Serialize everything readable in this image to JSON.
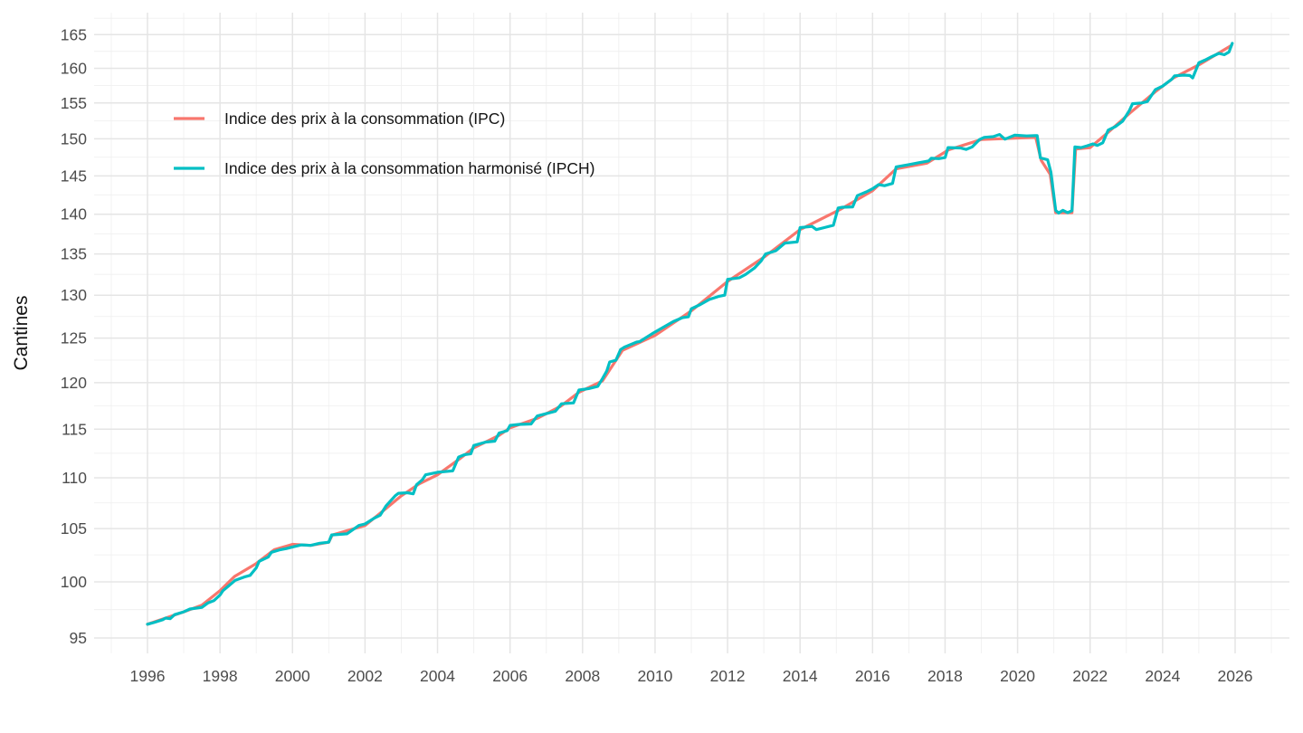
{
  "chart_data": {
    "type": "line",
    "title": "",
    "xlabel": "",
    "ylabel": "Cantines",
    "y_scale": "log",
    "grid": true,
    "legend_position": "inside-top-left",
    "background_color": "#ffffff",
    "grid_major_color": "#e5e5e5",
    "grid_minor_color": "#f0f0f0",
    "axis_text_color": "#4d4d4d",
    "title_text_color": "#141414",
    "x_ticks": [
      1996,
      1998,
      2000,
      2002,
      2004,
      2006,
      2008,
      2010,
      2012,
      2014,
      2016,
      2018,
      2020,
      2022,
      2024,
      2026
    ],
    "x_minor_ticks": [
      1995,
      1997,
      1999,
      2001,
      2003,
      2005,
      2007,
      2009,
      2011,
      2013,
      2015,
      2017,
      2019,
      2021,
      2023,
      2025,
      2027
    ],
    "y_ticks": [
      95,
      100,
      105,
      110,
      115,
      120,
      125,
      130,
      135,
      140,
      145,
      150,
      155,
      160,
      165
    ],
    "y_minor_ticks": [
      97.5,
      102.5,
      107.5,
      112.5,
      117.5,
      122.5,
      127.5,
      132.5,
      137.5,
      142.5,
      147.5,
      152.5,
      157.5,
      162.5,
      167.5
    ],
    "x_range": [
      1994.5,
      2027.4
    ],
    "y_range": [
      93.6,
      168.5
    ],
    "series": [
      {
        "name": "IPC",
        "label": "Indice des prix à la consommation (IPC)",
        "color": "#F8766D",
        "points": [
          [
            1996.0,
            96.2
          ],
          [
            1996.5,
            96.75
          ],
          [
            1997.0,
            97.3
          ],
          [
            1997.5,
            97.9
          ],
          [
            1998.0,
            99.2
          ],
          [
            1998.4,
            100.5
          ],
          [
            1999.0,
            101.7
          ],
          [
            1999.5,
            103.0
          ],
          [
            2000.0,
            103.5
          ],
          [
            2000.5,
            103.4
          ],
          [
            2001.0,
            103.7
          ],
          [
            2001.1,
            104.4
          ],
          [
            2002.0,
            105.3
          ],
          [
            2002.6,
            107.0
          ],
          [
            2003.0,
            108.2
          ],
          [
            2003.5,
            109.4
          ],
          [
            2004.0,
            110.3
          ],
          [
            2004.6,
            111.9
          ],
          [
            2005.0,
            113.05
          ],
          [
            2005.7,
            114.35
          ],
          [
            2006.0,
            115.15
          ],
          [
            2006.75,
            116.15
          ],
          [
            2007.4,
            117.45
          ],
          [
            2007.9,
            118.95
          ],
          [
            2008.55,
            120.2
          ],
          [
            2009.1,
            123.6
          ],
          [
            2010.0,
            125.3
          ],
          [
            2011.0,
            128.15
          ],
          [
            2012.0,
            131.65
          ],
          [
            2013.05,
            134.75
          ],
          [
            2014.0,
            138.05
          ],
          [
            2015.1,
            140.6
          ],
          [
            2016.0,
            143.05
          ],
          [
            2016.65,
            145.95
          ],
          [
            2017.5,
            146.7
          ],
          [
            2018.1,
            148.5
          ],
          [
            2019.0,
            149.9
          ],
          [
            2020.5,
            150.2
          ],
          [
            2020.65,
            147.1
          ],
          [
            2020.9,
            145.2
          ],
          [
            2021.05,
            140.2
          ],
          [
            2021.5,
            140.2
          ],
          [
            2021.6,
            148.6
          ],
          [
            2022.0,
            148.8
          ],
          [
            2022.5,
            150.9
          ],
          [
            2023.1,
            153.6
          ],
          [
            2023.8,
            156.6
          ],
          [
            2024.3,
            158.6
          ],
          [
            2025.0,
            160.5
          ],
          [
            2025.9,
            163.4
          ]
        ]
      },
      {
        "name": "IPCH",
        "label": "Indice des prix à la consommation harmonisé (IPCH)",
        "color": "#00BFC4",
        "points": [
          [
            1996.0,
            96.2
          ],
          [
            1996.17,
            96.35
          ],
          [
            1996.42,
            96.6
          ],
          [
            1996.5,
            96.75
          ],
          [
            1996.63,
            96.7
          ],
          [
            1996.75,
            97.05
          ],
          [
            1997.0,
            97.3
          ],
          [
            1997.17,
            97.55
          ],
          [
            1997.5,
            97.7
          ],
          [
            1997.67,
            98.1
          ],
          [
            1997.83,
            98.3
          ],
          [
            1998.0,
            98.8
          ],
          [
            1998.08,
            99.2
          ],
          [
            1998.33,
            99.9
          ],
          [
            1998.42,
            100.15
          ],
          [
            1998.67,
            100.45
          ],
          [
            1998.83,
            100.6
          ],
          [
            1999.0,
            101.3
          ],
          [
            1999.08,
            101.9
          ],
          [
            1999.33,
            102.3
          ],
          [
            1999.42,
            102.75
          ],
          [
            1999.67,
            103.0
          ],
          [
            1999.83,
            103.1
          ],
          [
            2000.0,
            103.25
          ],
          [
            2000.25,
            103.45
          ],
          [
            2000.5,
            103.4
          ],
          [
            2000.75,
            103.6
          ],
          [
            2001.0,
            103.7
          ],
          [
            2001.08,
            104.4
          ],
          [
            2001.5,
            104.5
          ],
          [
            2001.83,
            105.3
          ],
          [
            2002.0,
            105.45
          ],
          [
            2002.25,
            106.0
          ],
          [
            2002.42,
            106.3
          ],
          [
            2002.58,
            107.2
          ],
          [
            2002.83,
            108.2
          ],
          [
            2002.92,
            108.45
          ],
          [
            2003.17,
            108.5
          ],
          [
            2003.33,
            108.4
          ],
          [
            2003.42,
            109.3
          ],
          [
            2003.58,
            109.8
          ],
          [
            2003.67,
            110.3
          ],
          [
            2004.0,
            110.55
          ],
          [
            2004.42,
            110.7
          ],
          [
            2004.58,
            112.1
          ],
          [
            2004.75,
            112.35
          ],
          [
            2004.92,
            112.45
          ],
          [
            2005.0,
            113.3
          ],
          [
            2005.33,
            113.65
          ],
          [
            2005.58,
            113.75
          ],
          [
            2005.7,
            114.6
          ],
          [
            2005.92,
            114.85
          ],
          [
            2006.0,
            115.4
          ],
          [
            2006.25,
            115.5
          ],
          [
            2006.58,
            115.55
          ],
          [
            2006.75,
            116.4
          ],
          [
            2007.0,
            116.65
          ],
          [
            2007.25,
            116.9
          ],
          [
            2007.42,
            117.7
          ],
          [
            2007.75,
            117.8
          ],
          [
            2007.9,
            119.2
          ],
          [
            2008.17,
            119.35
          ],
          [
            2008.42,
            119.6
          ],
          [
            2008.55,
            120.45
          ],
          [
            2008.67,
            121.3
          ],
          [
            2008.75,
            122.3
          ],
          [
            2008.92,
            122.5
          ],
          [
            2009.05,
            123.7
          ],
          [
            2009.17,
            124.0
          ],
          [
            2009.5,
            124.55
          ],
          [
            2009.58,
            124.6
          ],
          [
            2009.92,
            125.5
          ],
          [
            2010.17,
            126.1
          ],
          [
            2010.5,
            126.9
          ],
          [
            2010.75,
            127.35
          ],
          [
            2010.92,
            127.45
          ],
          [
            2011.0,
            128.4
          ],
          [
            2011.25,
            128.9
          ],
          [
            2011.5,
            129.5
          ],
          [
            2011.75,
            129.85
          ],
          [
            2011.92,
            130.0
          ],
          [
            2012.0,
            131.9
          ],
          [
            2012.33,
            132.1
          ],
          [
            2012.5,
            132.5
          ],
          [
            2012.75,
            133.3
          ],
          [
            2012.92,
            134.1
          ],
          [
            2013.05,
            135.0
          ],
          [
            2013.33,
            135.4
          ],
          [
            2013.58,
            136.35
          ],
          [
            2013.92,
            136.5
          ],
          [
            2014.0,
            138.3
          ],
          [
            2014.33,
            138.45
          ],
          [
            2014.45,
            138.05
          ],
          [
            2014.67,
            138.3
          ],
          [
            2014.92,
            138.6
          ],
          [
            2015.05,
            140.8
          ],
          [
            2015.17,
            140.9
          ],
          [
            2015.45,
            140.95
          ],
          [
            2015.58,
            142.4
          ],
          [
            2015.83,
            142.9
          ],
          [
            2016.0,
            143.3
          ],
          [
            2016.17,
            143.85
          ],
          [
            2016.33,
            143.7
          ],
          [
            2016.55,
            144.0
          ],
          [
            2016.65,
            146.2
          ],
          [
            2017.0,
            146.5
          ],
          [
            2017.33,
            146.8
          ],
          [
            2017.55,
            147.0
          ],
          [
            2017.62,
            147.35
          ],
          [
            2017.83,
            147.3
          ],
          [
            2018.0,
            147.45
          ],
          [
            2018.08,
            148.8
          ],
          [
            2018.42,
            148.75
          ],
          [
            2018.58,
            148.55
          ],
          [
            2018.75,
            148.9
          ],
          [
            2018.95,
            149.9
          ],
          [
            2019.08,
            150.2
          ],
          [
            2019.33,
            150.3
          ],
          [
            2019.5,
            150.6
          ],
          [
            2019.65,
            149.95
          ],
          [
            2019.92,
            150.5
          ],
          [
            2020.25,
            150.4
          ],
          [
            2020.54,
            150.45
          ],
          [
            2020.63,
            147.4
          ],
          [
            2020.83,
            147.15
          ],
          [
            2020.92,
            145.5
          ],
          [
            2021.05,
            140.5
          ],
          [
            2021.13,
            140.15
          ],
          [
            2021.25,
            140.5
          ],
          [
            2021.38,
            140.2
          ],
          [
            2021.5,
            140.45
          ],
          [
            2021.58,
            148.9
          ],
          [
            2021.75,
            148.8
          ],
          [
            2021.92,
            149.05
          ],
          [
            2022.08,
            149.3
          ],
          [
            2022.2,
            149.1
          ],
          [
            2022.35,
            149.45
          ],
          [
            2022.5,
            151.2
          ],
          [
            2022.7,
            151.7
          ],
          [
            2022.9,
            152.45
          ],
          [
            2023.08,
            153.9
          ],
          [
            2023.17,
            154.9
          ],
          [
            2023.42,
            155.0
          ],
          [
            2023.58,
            155.2
          ],
          [
            2023.8,
            156.9
          ],
          [
            2024.0,
            157.4
          ],
          [
            2024.25,
            158.4
          ],
          [
            2024.33,
            158.9
          ],
          [
            2024.58,
            159.0
          ],
          [
            2024.75,
            158.95
          ],
          [
            2024.83,
            158.6
          ],
          [
            2025.0,
            160.8
          ],
          [
            2025.17,
            161.2
          ],
          [
            2025.35,
            161.7
          ],
          [
            2025.55,
            162.2
          ],
          [
            2025.7,
            162.0
          ],
          [
            2025.83,
            162.4
          ],
          [
            2025.92,
            163.7
          ]
        ]
      }
    ]
  }
}
